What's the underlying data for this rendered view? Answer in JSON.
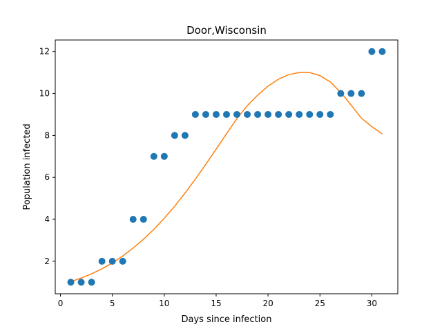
{
  "chart_data": {
    "type": "scatter",
    "title": "Door,Wisconsin",
    "xlabel": "Days since infection",
    "ylabel": "Population infected",
    "xlim": [
      -0.5,
      32.5
    ],
    "ylim": [
      0.45,
      12.55
    ],
    "xticks": [
      0,
      5,
      10,
      15,
      20,
      25,
      30
    ],
    "yticks": [
      2,
      4,
      6,
      8,
      10,
      12
    ],
    "grid": false,
    "series": [
      {
        "type": "scatter",
        "color": "#1f77b4",
        "x": [
          1,
          2,
          3,
          4,
          5,
          6,
          7,
          8,
          9,
          10,
          11,
          12,
          13,
          14,
          15,
          16,
          17,
          18,
          19,
          20,
          21,
          22,
          23,
          24,
          25,
          26,
          27,
          28,
          29,
          30,
          31
        ],
        "y": [
          1,
          1,
          1,
          2,
          2,
          2,
          4,
          4,
          7,
          7,
          8,
          8,
          9,
          9,
          9,
          9,
          9,
          9,
          9,
          9,
          9,
          9,
          9,
          9,
          9,
          9,
          10,
          10,
          10,
          12,
          12
        ]
      },
      {
        "type": "line",
        "color": "#ff7f0e",
        "x": [
          1,
          2,
          3,
          4,
          5,
          6,
          7,
          8,
          9,
          10,
          11,
          12,
          13,
          14,
          15,
          16,
          17,
          18,
          19,
          20,
          21,
          22,
          23,
          24,
          25,
          26,
          27,
          28,
          29,
          30,
          31
        ],
        "y": [
          1.03,
          1.2,
          1.4,
          1.64,
          1.92,
          2.25,
          2.63,
          3.05,
          3.52,
          4.05,
          4.62,
          5.25,
          5.92,
          6.62,
          7.35,
          8.08,
          8.8,
          9.42,
          9.92,
          10.35,
          10.68,
          10.9,
          11.0,
          11.0,
          10.85,
          10.55,
          10.05,
          9.45,
          8.82,
          8.42,
          8.07
        ]
      }
    ]
  }
}
